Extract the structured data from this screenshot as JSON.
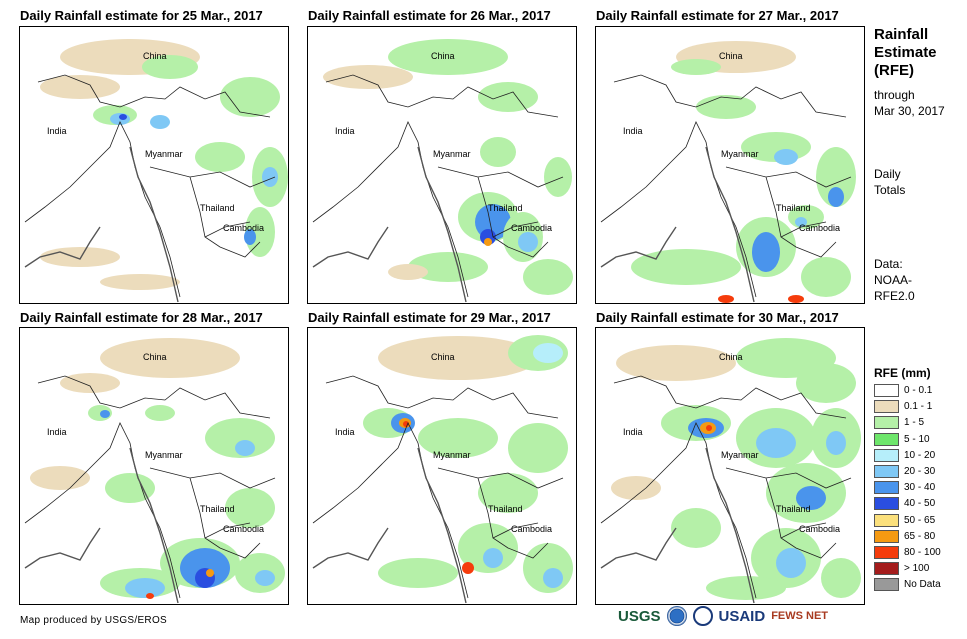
{
  "panels": [
    {
      "title": "Daily Rainfall estimate for 25 Mar., 2017",
      "labels": {
        "china": "China",
        "india": "India",
        "myanmar": "Myanmar",
        "thailand": "Thailand",
        "cambodia": "Cambodia"
      }
    },
    {
      "title": "Daily Rainfall estimate for 26 Mar., 2017",
      "labels": {
        "china": "China",
        "india": "India",
        "myanmar": "Myanmar",
        "thailand": "Thailand",
        "cambodia": "Cambodia"
      }
    },
    {
      "title": "Daily Rainfall estimate for 27 Mar., 2017",
      "labels": {
        "china": "China",
        "india": "India",
        "myanmar": "Myanmar",
        "thailand": "Thailand",
        "cambodia": "Cambodia"
      }
    },
    {
      "title": "Daily Rainfall estimate for 28 Mar., 2017",
      "labels": {
        "china": "China",
        "india": "India",
        "myanmar": "Myanmar",
        "thailand": "Thailand",
        "cambodia": "Cambodia"
      }
    },
    {
      "title": "Daily Rainfall estimate for 29 Mar., 2017",
      "labels": {
        "china": "China",
        "india": "India",
        "myanmar": "Myanmar",
        "thailand": "Thailand",
        "cambodia": "Cambodia"
      }
    },
    {
      "title": "Daily Rainfall estimate for 30 Mar., 2017",
      "labels": {
        "china": "China",
        "india": "India",
        "myanmar": "Myanmar",
        "thailand": "Thailand",
        "cambodia": "Cambodia"
      }
    }
  ],
  "sidebar": {
    "title_lines": [
      "Rainfall",
      "Estimate",
      "(RFE)"
    ],
    "through": "through",
    "date": "Mar 30, 2017",
    "totals_lines": [
      "Daily",
      "Totals"
    ],
    "data_lines": [
      "Data:",
      "NOAA-",
      "RFE2.0"
    ]
  },
  "legend": {
    "title": "RFE (mm)",
    "items": [
      {
        "label": "0 - 0.1",
        "color": "#ffffff"
      },
      {
        "label": "0.1 - 1",
        "color": "#ecdcbc"
      },
      {
        "label": "1 - 5",
        "color": "#b5f0a8"
      },
      {
        "label": "5 - 10",
        "color": "#6ee66b"
      },
      {
        "label": "10 - 20",
        "color": "#b6eefa"
      },
      {
        "label": "20 - 30",
        "color": "#7fc8f5"
      },
      {
        "label": "30 - 40",
        "color": "#4a94ec"
      },
      {
        "label": "40 - 50",
        "color": "#2a4ee0"
      },
      {
        "label": "50 - 65",
        "color": "#fbe07c"
      },
      {
        "label": "65 - 80",
        "color": "#f59a12"
      },
      {
        "label": "80 - 100",
        "color": "#f53c0c"
      },
      {
        "label": "> 100",
        "color": "#a41c1c"
      },
      {
        "label": "No Data",
        "color": "#999999"
      }
    ]
  },
  "footer": {
    "credit": "Map produced by USGS/EROS"
  },
  "logos": {
    "usgs": "USGS",
    "usaid": "USAID",
    "fewsnet": "FEWS NET"
  }
}
